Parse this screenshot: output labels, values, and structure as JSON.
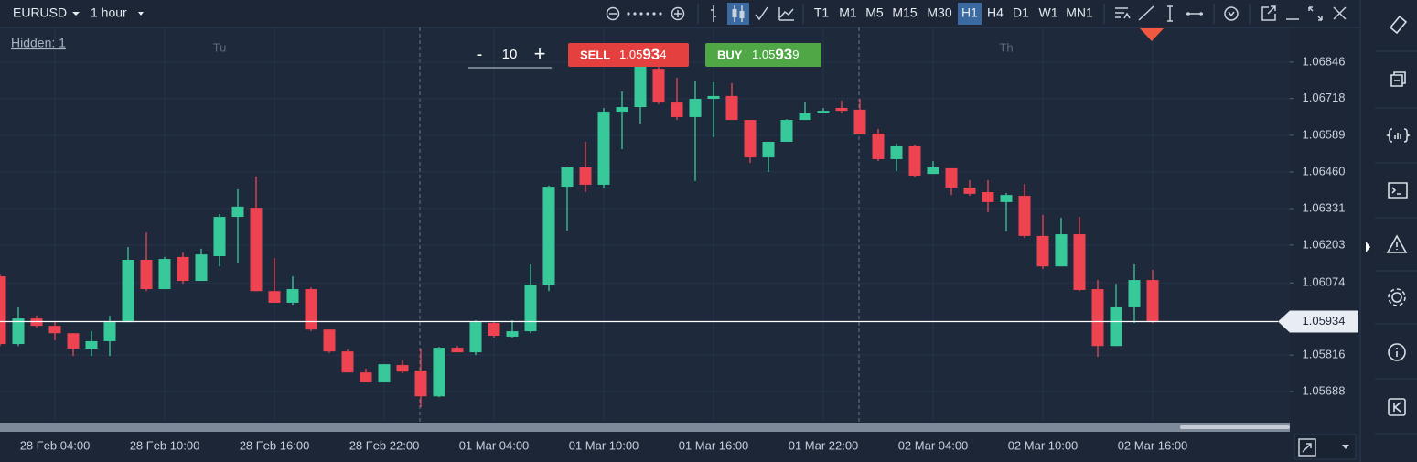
{
  "toolbar": {
    "symbol": "EURUSD",
    "timeframe": "1 hour",
    "timeframes": [
      "T1",
      "M1",
      "M5",
      "M15",
      "M30",
      "H1",
      "H4",
      "D1",
      "W1",
      "MN1"
    ],
    "active_timeframe": "H1"
  },
  "hidden_label": "Hidden: 1",
  "order": {
    "minus": "-",
    "quantity": 10,
    "plus": "+",
    "sell_label": "SELL",
    "sell_price": 1.05934,
    "buy_label": "BUY",
    "buy_price": 1.05939
  },
  "chart_data": {
    "type": "candlestick",
    "categories": [
      null,
      null,
      null,
      "28 Feb 04:00",
      null,
      null,
      null,
      null,
      null,
      "28 Feb 10:00",
      null,
      null,
      null,
      null,
      null,
      "28 Feb 16:00",
      null,
      null,
      null,
      null,
      null,
      "28 Feb 22:00",
      null,
      null,
      null,
      null,
      null,
      "01 Mar 04:00",
      null,
      null,
      null,
      null,
      null,
      "01 Mar 10:00",
      null,
      null,
      null,
      null,
      null,
      "01 Mar 16:00",
      null,
      null,
      null,
      null,
      null,
      "01 Mar 22:00",
      null,
      null,
      null,
      null,
      null,
      "02 Mar 04:00",
      null,
      null,
      null,
      null,
      null,
      "02 Mar 10:00",
      null,
      null,
      null,
      null,
      null,
      "02 Mar 16:00"
    ],
    "open": [
      1.06093,
      1.05855,
      1.05945,
      1.05919,
      1.05893,
      1.05839,
      1.05865,
      1.05932,
      1.06151,
      1.06048,
      1.06161,
      1.06077,
      1.06164,
      1.06302,
      1.06334,
      1.06041,
      1.06,
      1.06048,
      1.05906,
      1.05829,
      1.05755,
      1.0572,
      1.05781,
      1.05762,
      1.05671,
      1.05842,
      1.05826,
      1.05929,
      1.05881,
      1.059,
      1.06064,
      1.06408,
      1.06476,
      1.06415,
      1.06672,
      1.06688,
      1.06823,
      1.06704,
      1.06653,
      1.06717,
      1.06727,
      1.06643,
      1.06511,
      1.06566,
      1.06643,
      1.06666,
      1.06685,
      1.06679,
      1.06595,
      1.06505,
      1.0655,
      1.06453,
      1.06473,
      1.06405,
      1.06389,
      1.06354,
      1.06376,
      1.06235,
      1.06128,
      1.06241,
      1.06048,
      1.05848,
      1.05984,
      1.0608
    ],
    "high": [
      1.06099,
      1.05984,
      1.05955,
      1.05932,
      1.05893,
      1.059,
      1.05955,
      1.06196,
      1.06247,
      1.06161,
      1.06177,
      1.0619,
      1.06312,
      1.06399,
      1.06444,
      1.06157,
      1.06093,
      1.06054,
      1.05906,
      1.05836,
      1.05768,
      1.05784,
      1.05797,
      1.05839,
      1.05845,
      1.05848,
      1.05939,
      1.05932,
      1.05939,
      1.06135,
      1.06412,
      1.06479,
      1.06566,
      1.06685,
      1.06743,
      1.06878,
      1.06865,
      1.06791,
      1.06782,
      1.06775,
      1.06772,
      1.06643,
      1.06566,
      1.06646,
      1.06704,
      1.06685,
      1.06711,
      1.06717,
      1.06611,
      1.0656,
      1.06556,
      1.06498,
      1.06473,
      1.06431,
      1.06431,
      1.06386,
      1.06418,
      1.06309,
      1.06299,
      1.06302,
      1.0608,
      1.06067,
      1.06135,
      1.06116
    ],
    "low": [
      1.05848,
      1.05848,
      1.05913,
      1.05868,
      1.05813,
      1.05813,
      1.05813,
      1.05932,
      1.06041,
      1.06048,
      1.06067,
      1.06077,
      1.06128,
      1.06138,
      1.06041,
      1.06,
      1.05993,
      1.059,
      1.05823,
      1.05755,
      1.0572,
      1.0572,
      1.05752,
      1.05633,
      1.05668,
      1.05826,
      1.05816,
      1.05877,
      1.05877,
      1.05893,
      1.06041,
      1.06254,
      1.06389,
      1.06405,
      1.0654,
      1.0663,
      1.06698,
      1.06643,
      1.06428,
      1.06582,
      1.06643,
      1.06492,
      1.0646,
      1.06566,
      1.06643,
      1.06666,
      1.06666,
      1.06592,
      1.06498,
      1.06463,
      1.06441,
      1.06453,
      1.06379,
      1.06376,
      1.06318,
      1.06251,
      1.06228,
      1.06119,
      1.06128,
      1.06041,
      1.0581,
      1.05848,
      1.05929,
      1.05929
    ],
    "close": [
      1.05855,
      1.05945,
      1.05919,
      1.05893,
      1.05839,
      1.05865,
      1.05932,
      1.06151,
      1.06048,
      1.06154,
      1.06077,
      1.0617,
      1.06302,
      1.06338,
      1.06041,
      1.06,
      1.06048,
      1.05906,
      1.05829,
      1.05755,
      1.0572,
      1.05784,
      1.05758,
      1.05671,
      1.05842,
      1.05826,
      1.05932,
      1.05884,
      1.059,
      1.06064,
      1.06408,
      1.06476,
      1.06415,
      1.06672,
      1.06688,
      1.0684,
      1.06704,
      1.06653,
      1.06717,
      1.06727,
      1.06643,
      1.06511,
      1.06566,
      1.06643,
      1.06666,
      1.06675,
      1.06675,
      1.06592,
      1.06505,
      1.0655,
      1.06447,
      1.06476,
      1.06405,
      1.06383,
      1.06354,
      1.06379,
      1.06235,
      1.06128,
      1.06241,
      1.06045,
      1.05848,
      1.05984,
      1.0608,
      1.05934
    ],
    "up_color": "#37c99a",
    "down_color": "#ee4350",
    "ylim": [
      1.05585,
      1.06968
    ],
    "yticks": [
      1.05688,
      1.05816,
      {
        "value": 1.0607,
        "label": "1.06074"
      },
      1.06203,
      1.06331,
      {
        "value": 1.0646,
        "label": "1.06460"
      },
      1.06589,
      1.06718,
      1.06846
    ],
    "current_price": 1.05934,
    "day_labels": [
      "Tu",
      "Th"
    ],
    "grid": true
  }
}
